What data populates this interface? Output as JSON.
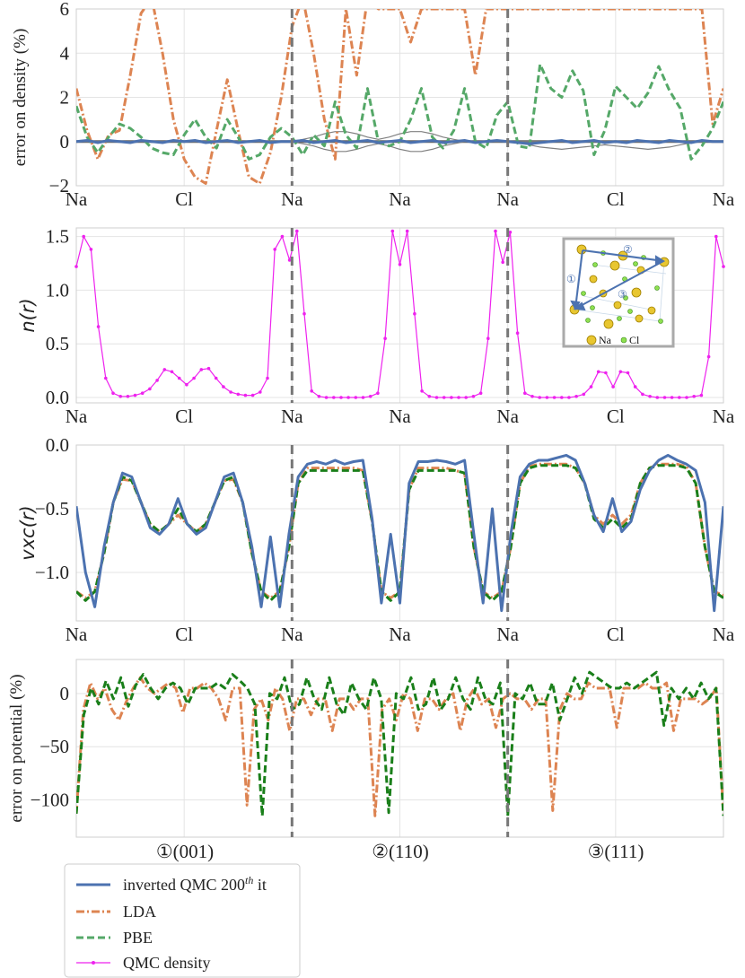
{
  "colors": {
    "qmc": "#4c72b0",
    "lda": "#dd8452",
    "pbe": "#55a868",
    "pbe_pot": "#1a7f1a",
    "density": "#ee22ee",
    "ref": "#808080"
  },
  "x_ticks": [
    "Na",
    "Cl",
    "Na",
    "Na",
    "Na",
    "Cl",
    "Na"
  ],
  "directions": [
    "①(001)",
    "②(110)",
    "③(111)"
  ],
  "legend": {
    "qmc": "inverted QMC 200",
    "qmc_sup": "th",
    "qmc_tail": " it",
    "lda": "LDA",
    "pbe": "PBE",
    "density": "QMC density"
  },
  "inset": {
    "na": "Na",
    "cl": "Cl",
    "m1": "①",
    "m2": "②",
    "m3": "③"
  },
  "chart_data": [
    {
      "type": "line",
      "ylabel": "error on density (%)",
      "ylim": [
        -2,
        6
      ],
      "yticks": [
        "−2",
        "0",
        "2",
        "4",
        "6"
      ],
      "series": [
        {
          "name": "inverted QMC 200th it",
          "values": [
            0,
            0.05,
            -0.05,
            0.05,
            0,
            -0.05,
            0.05,
            0,
            -0.05,
            0.05,
            0,
            0.05,
            -0.05,
            0,
            0.05,
            -0.05,
            0,
            0.05,
            -0.05,
            0,
            0,
            0.05,
            -0.05,
            0,
            0.05,
            -0.05,
            0,
            0.05,
            -0.05,
            0,
            0.05,
            -0.05,
            0,
            0.05,
            -0.05,
            0,
            0.05,
            -0.05,
            0,
            0.05,
            0,
            -0.05,
            -0.1,
            -0.05,
            0,
            0.05,
            -0.05,
            0,
            0.05,
            -0.05,
            0,
            -0.05,
            0.05,
            0,
            -0.05,
            0.05,
            0,
            -0.05,
            0.05,
            0,
            0
          ]
        },
        {
          "name": "LDA",
          "values": [
            2.4,
            0.5,
            -0.8,
            0.3,
            0.5,
            3,
            5.8,
            6.5,
            4,
            1,
            -0.8,
            -1.6,
            -1.9,
            0.5,
            2.8,
            0.5,
            -1.6,
            -1.9,
            -0.5,
            2,
            5.2,
            6.5,
            4,
            1,
            -0.8,
            6,
            3,
            6.5,
            6,
            6,
            6,
            4.5,
            6,
            6,
            6,
            6,
            6,
            3,
            6,
            6,
            6,
            6,
            6,
            6,
            6,
            6,
            6,
            6,
            6,
            6,
            6,
            6,
            6,
            6,
            6,
            6,
            6,
            6,
            6,
            0.8,
            2.4
          ]
        },
        {
          "name": "PBE",
          "values": [
            1.6,
            0.2,
            -0.5,
            0.2,
            0.8,
            0.6,
            0.2,
            -0.3,
            -0.5,
            -0.6,
            0.3,
            1,
            0.2,
            -0.3,
            1,
            0.2,
            -0.8,
            -0.6,
            0.2,
            0.6,
            0.2,
            -0.6,
            0.3,
            -0.2,
            1.8,
            0.3,
            -0.3,
            2.4,
            0,
            -0.2,
            0,
            1,
            2.4,
            0.2,
            -0.3,
            0.5,
            2.4,
            0,
            -0.3,
            1.2,
            1.8,
            -0.2,
            -0.3,
            3.5,
            2.4,
            2,
            3.2,
            2.3,
            -0.6,
            0.5,
            2.5,
            2,
            1.5,
            2.2,
            3.4,
            2.3,
            1.5,
            -0.8,
            -0.2,
            0.6,
            1.8
          ]
        },
        {
          "name": "reference band upper",
          "values": [
            0,
            0,
            0,
            0,
            0,
            0,
            0,
            0,
            0,
            0,
            0,
            0,
            0,
            0,
            0,
            0,
            0,
            0,
            0,
            0,
            0,
            0.1,
            0.2,
            0.35,
            0.45,
            0.45,
            0.35,
            0.2,
            0.1,
            0.2,
            0.35,
            0.45,
            0.45,
            0.35,
            0.2,
            0.1,
            0,
            0,
            0,
            0,
            0,
            0,
            0,
            0,
            0,
            0,
            0,
            0,
            0,
            0,
            0,
            0,
            0,
            0,
            0,
            0,
            0,
            0,
            0,
            0,
            0
          ]
        },
        {
          "name": "reference band lower",
          "values": [
            0,
            0,
            0,
            0,
            0,
            0,
            0,
            0,
            0,
            0,
            0,
            0,
            0,
            0,
            0,
            0,
            0,
            0,
            0,
            0,
            0,
            -0.1,
            -0.2,
            -0.35,
            -0.45,
            -0.45,
            -0.35,
            -0.2,
            -0.1,
            -0.2,
            -0.35,
            -0.45,
            -0.45,
            -0.35,
            -0.2,
            -0.1,
            0,
            0,
            0,
            0,
            0,
            -0.05,
            -0.15,
            -0.25,
            -0.3,
            -0.35,
            -0.3,
            -0.25,
            -0.2,
            -0.15,
            -0.2,
            -0.25,
            -0.3,
            -0.35,
            -0.3,
            -0.25,
            -0.15,
            -0.05,
            0,
            0,
            0
          ]
        }
      ]
    },
    {
      "type": "line",
      "ylabel": "n(r)",
      "ylim": [
        -0.05,
        1.58
      ],
      "yticks": [
        "0.0",
        "0.5",
        "1.0",
        "1.5"
      ],
      "series": [
        {
          "name": "QMC density",
          "values": [
            1.22,
            1.5,
            1.38,
            0.66,
            0.18,
            0.04,
            0.01,
            0.01,
            0.02,
            0.04,
            0.08,
            0.16,
            0.26,
            0.24,
            0.18,
            0.12,
            0.18,
            0.26,
            0.27,
            0.18,
            0.1,
            0.05,
            0.03,
            0.02,
            0.02,
            0.05,
            0.18,
            1.38,
            1.5,
            1.28,
            1.55,
            0.78,
            0.06,
            0.01,
            0.0,
            0.0,
            0.0,
            0.0,
            0.0,
            0.0,
            0.01,
            0.04,
            0.55,
            1.55,
            1.24,
            1.55,
            0.78,
            0.06,
            0.01,
            0.0,
            0.0,
            0.0,
            0.0,
            0.0,
            0.01,
            0.04,
            0.55,
            1.55,
            1.26,
            1.54,
            0.6,
            0.04,
            0.01,
            0.0,
            0.0,
            0.0,
            0.0,
            0.0,
            0.01,
            0.03,
            0.1,
            0.24,
            0.23,
            0.1,
            0.24,
            0.23,
            0.1,
            0.03,
            0.01,
            0.0,
            0.0,
            0.0,
            0.0,
            0.0,
            0.01,
            0.02,
            0.38,
            1.5,
            1.22
          ]
        }
      ]
    },
    {
      "type": "line",
      "ylabel": "vxc(r)",
      "ylim": [
        -1.38,
        0.0
      ],
      "yticks": [
        "−1.0",
        "−0.5",
        "0.0"
      ],
      "series": [
        {
          "name": "inverted QMC 200th it",
          "values": [
            -0.48,
            -1.0,
            -1.27,
            -0.8,
            -0.45,
            -0.22,
            -0.25,
            -0.45,
            -0.65,
            -0.7,
            -0.62,
            -0.42,
            -0.62,
            -0.7,
            -0.65,
            -0.45,
            -0.25,
            -0.22,
            -0.45,
            -0.8,
            -1.27,
            -0.72,
            -1.27,
            -0.7,
            -0.25,
            -0.15,
            -0.13,
            -0.15,
            -0.12,
            -0.15,
            -0.13,
            -0.12,
            -0.58,
            -1.24,
            -0.7,
            -1.24,
            -0.3,
            -0.13,
            -0.13,
            -0.12,
            -0.13,
            -0.15,
            -0.12,
            -0.7,
            -1.24,
            -0.5,
            -1.3,
            -0.7,
            -0.25,
            -0.15,
            -0.12,
            -0.12,
            -0.1,
            -0.08,
            -0.12,
            -0.3,
            -0.55,
            -0.68,
            -0.42,
            -0.68,
            -0.6,
            -0.35,
            -0.2,
            -0.12,
            -0.08,
            -0.12,
            -0.15,
            -0.2,
            -0.45,
            -1.3,
            -0.48
          ]
        },
        {
          "name": "LDA",
          "values": [
            -1.15,
            -1.2,
            -1.15,
            -0.85,
            -0.45,
            -0.27,
            -0.28,
            -0.45,
            -0.62,
            -0.68,
            -0.62,
            -0.55,
            -0.62,
            -0.68,
            -0.62,
            -0.45,
            -0.28,
            -0.27,
            -0.45,
            -0.85,
            -1.15,
            -1.2,
            -1.15,
            -0.8,
            -0.3,
            -0.18,
            -0.18,
            -0.18,
            -0.18,
            -0.18,
            -0.18,
            -0.2,
            -0.6,
            -1.15,
            -1.2,
            -1.15,
            -0.35,
            -0.18,
            -0.18,
            -0.18,
            -0.18,
            -0.2,
            -0.22,
            -0.8,
            -1.15,
            -1.2,
            -1.15,
            -0.8,
            -0.3,
            -0.17,
            -0.15,
            -0.15,
            -0.15,
            -0.15,
            -0.18,
            -0.3,
            -0.55,
            -0.62,
            -0.55,
            -0.62,
            -0.55,
            -0.3,
            -0.18,
            -0.15,
            -0.15,
            -0.15,
            -0.17,
            -0.3,
            -0.8,
            -1.15,
            -1.18
          ]
        },
        {
          "name": "PBE",
          "values": [
            -1.15,
            -1.22,
            -1.15,
            -0.85,
            -0.45,
            -0.25,
            -0.28,
            -0.45,
            -0.62,
            -0.68,
            -0.62,
            -0.5,
            -0.62,
            -0.68,
            -0.62,
            -0.45,
            -0.28,
            -0.25,
            -0.45,
            -0.85,
            -1.15,
            -1.22,
            -1.15,
            -0.8,
            -0.3,
            -0.2,
            -0.2,
            -0.2,
            -0.2,
            -0.2,
            -0.2,
            -0.2,
            -0.6,
            -1.15,
            -1.22,
            -1.15,
            -0.35,
            -0.2,
            -0.2,
            -0.2,
            -0.2,
            -0.2,
            -0.22,
            -0.8,
            -1.15,
            -1.22,
            -1.15,
            -0.8,
            -0.3,
            -0.18,
            -0.16,
            -0.16,
            -0.16,
            -0.16,
            -0.18,
            -0.3,
            -0.58,
            -0.65,
            -0.58,
            -0.65,
            -0.58,
            -0.3,
            -0.18,
            -0.16,
            -0.16,
            -0.16,
            -0.18,
            -0.3,
            -0.8,
            -1.15,
            -1.2
          ]
        }
      ]
    },
    {
      "type": "line",
      "ylabel": "error on potential (%)",
      "ylim": [
        -135,
        32
      ],
      "yticks": [
        "−100",
        "−50",
        "0"
      ],
      "series": [
        {
          "name": "LDA",
          "values": [
            -113,
            -15,
            10,
            -5,
            5,
            -15,
            -25,
            -8,
            5,
            15,
            5,
            0,
            5,
            10,
            5,
            -18,
            5,
            5,
            10,
            5,
            -5,
            -25,
            5,
            5,
            -105,
            -15,
            -5,
            -25,
            5,
            -5,
            -35,
            -5,
            -5,
            -20,
            -5,
            -5,
            -35,
            -5,
            -5,
            -15,
            -5,
            -5,
            -115,
            -15,
            -5,
            -25,
            0,
            -5,
            -35,
            -5,
            -5,
            -15,
            -5,
            0,
            -35,
            -5,
            5,
            -10,
            -5,
            -32,
            -5,
            0,
            -5,
            -5,
            -15,
            -5,
            -5,
            -110,
            -15,
            0,
            -5,
            -5,
            10,
            5,
            5,
            5,
            -32,
            5,
            5,
            5,
            10,
            5,
            5,
            10,
            -35,
            -5,
            -5,
            -5,
            -10,
            -5,
            5,
            -113
          ]
        },
        {
          "name": "PBE",
          "values": [
            -113,
            -20,
            5,
            -10,
            12,
            -5,
            15,
            -12,
            8,
            18,
            5,
            -5,
            5,
            10,
            5,
            -10,
            5,
            5,
            5,
            10,
            5,
            18,
            12,
            5,
            -10,
            -115,
            0,
            -5,
            15,
            -15,
            -10,
            15,
            -5,
            -15,
            15,
            -10,
            -20,
            10,
            -5,
            -15,
            15,
            -5,
            -112,
            0,
            -5,
            15,
            -15,
            -10,
            15,
            -15,
            -5,
            15,
            -5,
            -15,
            15,
            -5,
            -10,
            10,
            -115,
            0,
            -5,
            10,
            -10,
            -10,
            10,
            -25,
            -5,
            15,
            0,
            20,
            15,
            10,
            5,
            5,
            10,
            5,
            10,
            15,
            20,
            -30,
            5,
            -5,
            5,
            -5,
            10,
            -5,
            5,
            -115
          ]
        }
      ]
    }
  ]
}
